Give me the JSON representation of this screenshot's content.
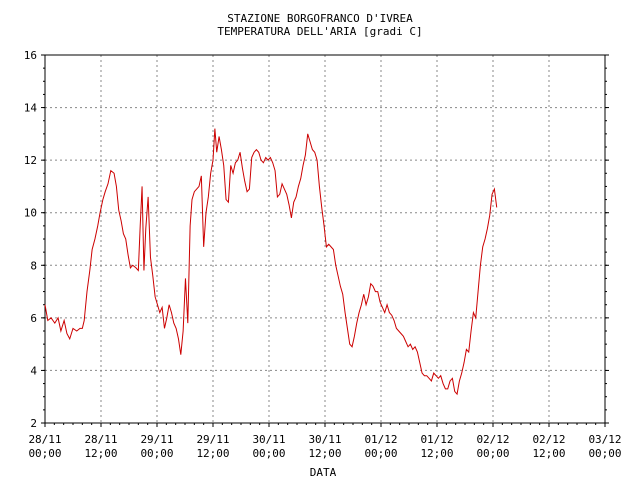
{
  "chart_data": {
    "type": "line",
    "title": "STAZIONE BORGOFRANCO D'IVREA",
    "subtitle": "TEMPERATURA DELL'ARIA [gradi C]",
    "xlabel": "DATA",
    "ylabel": "",
    "ylim": [
      2,
      16
    ],
    "yticks": [
      "2",
      "4",
      "6",
      "8",
      "10",
      "12",
      "14",
      "16"
    ],
    "xlim_hours": [
      0,
      120
    ],
    "xticks": [
      {
        "date": "28/11",
        "time": "00;00"
      },
      {
        "date": "28/11",
        "time": "12;00"
      },
      {
        "date": "29/11",
        "time": "00;00"
      },
      {
        "date": "29/11",
        "time": "12;00"
      },
      {
        "date": "30/11",
        "time": "00;00"
      },
      {
        "date": "30/11",
        "time": "12;00"
      },
      {
        "date": "01/12",
        "time": "00;00"
      },
      {
        "date": "01/12",
        "time": "12;00"
      },
      {
        "date": "02/12",
        "time": "00;00"
      },
      {
        "date": "02/12",
        "time": "12;00"
      },
      {
        "date": "03/12",
        "time": "00;00"
      }
    ],
    "grid": true,
    "series": [
      {
        "name": "",
        "color": "#cc0000",
        "points": [
          [
            0.0,
            6.5
          ],
          [
            0.6,
            5.9
          ],
          [
            1.3,
            6.0
          ],
          [
            2.1,
            5.8
          ],
          [
            2.8,
            6.0
          ],
          [
            3.4,
            5.5
          ],
          [
            4.1,
            5.9
          ],
          [
            4.7,
            5.4
          ],
          [
            5.3,
            5.2
          ],
          [
            6.0,
            5.6
          ],
          [
            6.8,
            5.5
          ],
          [
            7.5,
            5.6
          ],
          [
            8.0,
            5.6
          ],
          [
            8.4,
            5.9
          ],
          [
            9.0,
            7.0
          ],
          [
            9.6,
            7.8
          ],
          [
            10.1,
            8.6
          ],
          [
            10.7,
            9.0
          ],
          [
            11.3,
            9.5
          ],
          [
            11.8,
            10.0
          ],
          [
            12.4,
            10.5
          ],
          [
            12.9,
            10.8
          ],
          [
            13.5,
            11.1
          ],
          [
            14.1,
            11.6
          ],
          [
            14.8,
            11.5
          ],
          [
            15.3,
            11.0
          ],
          [
            15.8,
            10.1
          ],
          [
            16.3,
            9.7
          ],
          [
            16.8,
            9.2
          ],
          [
            17.3,
            9.0
          ],
          [
            17.8,
            8.4
          ],
          [
            18.3,
            7.9
          ],
          [
            18.8,
            8.0
          ],
          [
            19.5,
            7.9
          ],
          [
            20.0,
            7.8
          ],
          [
            20.4,
            9.5
          ],
          [
            20.8,
            11.0
          ],
          [
            21.2,
            7.8
          ],
          [
            21.6,
            9.4
          ],
          [
            22.1,
            10.6
          ],
          [
            22.6,
            8.3
          ],
          [
            23.1,
            7.6
          ],
          [
            23.6,
            6.8
          ],
          [
            24.1,
            6.5
          ],
          [
            24.6,
            6.2
          ],
          [
            25.1,
            6.4
          ],
          [
            25.6,
            5.6
          ],
          [
            26.1,
            6.0
          ],
          [
            26.6,
            6.5
          ],
          [
            27.1,
            6.2
          ],
          [
            27.6,
            5.8
          ],
          [
            28.1,
            5.6
          ],
          [
            28.6,
            5.2
          ],
          [
            29.1,
            4.6
          ],
          [
            29.6,
            5.5
          ],
          [
            30.1,
            7.5
          ],
          [
            30.6,
            5.8
          ],
          [
            31.1,
            9.5
          ],
          [
            31.5,
            10.5
          ],
          [
            32.0,
            10.8
          ],
          [
            32.5,
            10.9
          ],
          [
            33.0,
            11.0
          ],
          [
            33.5,
            11.4
          ],
          [
            34.0,
            8.7
          ],
          [
            34.5,
            10.0
          ],
          [
            35.0,
            10.6
          ],
          [
            35.5,
            11.5
          ],
          [
            36.0,
            12.0
          ],
          [
            36.4,
            13.2
          ],
          [
            36.8,
            12.3
          ],
          [
            37.3,
            12.9
          ],
          [
            37.8,
            12.4
          ],
          [
            38.3,
            11.8
          ],
          [
            38.8,
            10.5
          ],
          [
            39.3,
            10.4
          ],
          [
            39.8,
            11.8
          ],
          [
            40.3,
            11.5
          ],
          [
            40.8,
            11.9
          ],
          [
            41.3,
            12.0
          ],
          [
            41.8,
            12.3
          ],
          [
            42.3,
            11.7
          ],
          [
            42.8,
            11.2
          ],
          [
            43.3,
            10.8
          ],
          [
            43.8,
            10.9
          ],
          [
            44.3,
            12.1
          ],
          [
            44.8,
            12.3
          ],
          [
            45.3,
            12.4
          ],
          [
            45.8,
            12.3
          ],
          [
            46.3,
            12.0
          ],
          [
            46.8,
            11.9
          ],
          [
            47.3,
            12.1
          ],
          [
            47.8,
            12.0
          ],
          [
            48.3,
            12.1
          ],
          [
            48.8,
            11.9
          ],
          [
            49.3,
            11.6
          ],
          [
            49.8,
            10.6
          ],
          [
            50.3,
            10.7
          ],
          [
            50.8,
            11.1
          ],
          [
            51.3,
            10.9
          ],
          [
            51.8,
            10.7
          ],
          [
            52.3,
            10.3
          ],
          [
            52.8,
            9.8
          ],
          [
            53.3,
            10.4
          ],
          [
            53.8,
            10.6
          ],
          [
            54.3,
            11.0
          ],
          [
            54.8,
            11.3
          ],
          [
            55.3,
            11.8
          ],
          [
            55.8,
            12.2
          ],
          [
            56.3,
            13.0
          ],
          [
            56.8,
            12.7
          ],
          [
            57.3,
            12.4
          ],
          [
            57.8,
            12.3
          ],
          [
            58.3,
            12.0
          ],
          [
            58.8,
            11.0
          ],
          [
            59.3,
            10.2
          ],
          [
            59.8,
            9.5
          ],
          [
            60.3,
            8.7
          ],
          [
            60.8,
            8.8
          ],
          [
            61.3,
            8.7
          ],
          [
            61.8,
            8.6
          ],
          [
            62.3,
            8.0
          ],
          [
            62.8,
            7.6
          ],
          [
            63.3,
            7.2
          ],
          [
            63.8,
            6.9
          ],
          [
            64.3,
            6.2
          ],
          [
            64.8,
            5.6
          ],
          [
            65.3,
            5.0
          ],
          [
            65.8,
            4.9
          ],
          [
            66.3,
            5.3
          ],
          [
            66.8,
            5.8
          ],
          [
            67.3,
            6.2
          ],
          [
            67.8,
            6.5
          ],
          [
            68.3,
            6.9
          ],
          [
            68.8,
            6.5
          ],
          [
            69.3,
            6.8
          ],
          [
            69.8,
            7.3
          ],
          [
            70.3,
            7.2
          ],
          [
            70.8,
            7.0
          ],
          [
            71.3,
            7.0
          ],
          [
            71.8,
            6.6
          ],
          [
            72.3,
            6.4
          ],
          [
            72.8,
            6.2
          ],
          [
            73.3,
            6.5
          ],
          [
            73.8,
            6.2
          ],
          [
            74.3,
            6.1
          ],
          [
            74.8,
            5.9
          ],
          [
            75.3,
            5.6
          ],
          [
            75.8,
            5.5
          ],
          [
            76.3,
            5.4
          ],
          [
            76.8,
            5.3
          ],
          [
            77.3,
            5.1
          ],
          [
            77.8,
            4.9
          ],
          [
            78.3,
            5.0
          ],
          [
            78.8,
            4.8
          ],
          [
            79.3,
            4.9
          ],
          [
            79.8,
            4.7
          ],
          [
            80.3,
            4.3
          ],
          [
            80.8,
            3.9
          ],
          [
            81.3,
            3.8
          ],
          [
            81.8,
            3.8
          ],
          [
            82.3,
            3.7
          ],
          [
            82.8,
            3.6
          ],
          [
            83.3,
            3.9
          ],
          [
            83.8,
            3.8
          ],
          [
            84.3,
            3.7
          ],
          [
            84.8,
            3.8
          ],
          [
            85.3,
            3.5
          ],
          [
            85.8,
            3.3
          ],
          [
            86.3,
            3.3
          ],
          [
            86.8,
            3.6
          ],
          [
            87.3,
            3.7
          ],
          [
            87.8,
            3.2
          ],
          [
            88.3,
            3.1
          ],
          [
            88.8,
            3.6
          ],
          [
            89.3,
            3.9
          ],
          [
            89.8,
            4.3
          ],
          [
            90.3,
            4.8
          ],
          [
            90.8,
            4.7
          ],
          [
            91.3,
            5.5
          ],
          [
            91.8,
            6.2
          ],
          [
            92.3,
            6.0
          ],
          [
            92.8,
            7.0
          ],
          [
            93.3,
            8.0
          ],
          [
            93.8,
            8.7
          ],
          [
            94.3,
            9.0
          ],
          [
            94.8,
            9.4
          ],
          [
            95.3,
            9.9
          ],
          [
            95.8,
            10.7
          ],
          [
            96.3,
            10.9
          ],
          [
            96.8,
            10.2
          ]
        ]
      }
    ]
  }
}
